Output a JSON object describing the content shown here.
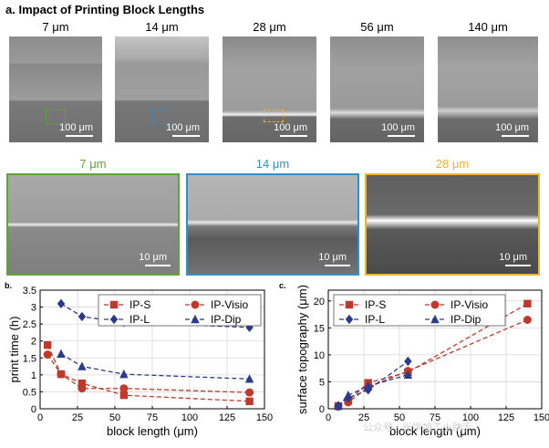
{
  "panel_a": {
    "title": "a. Impact of Printing Block Lengths",
    "top_labels": [
      "7 μm",
      "14 μm",
      "28 μm",
      "56 μm",
      "140 μm"
    ],
    "top_scale": "100 μm",
    "zoom_labels": [
      "7 μm",
      "14 μm",
      "28 μm"
    ],
    "zoom_scale": "10 μm",
    "colors": {
      "green": "#5aa832",
      "blue": "#2f8fd0",
      "orange": "#f0b030"
    }
  },
  "panel_b": {
    "letter": "b."
  },
  "panel_c": {
    "letter": "c."
  },
  "watermark": "公众号 · 光学加工小助手",
  "chart_data": [
    {
      "type": "line",
      "xlabel": "block length (μm)",
      "ylabel": "print time (h)",
      "xlim": [
        0,
        150
      ],
      "ylim": [
        0,
        3.5
      ],
      "xticks": [
        0,
        25,
        50,
        75,
        100,
        125,
        150
      ],
      "yticks": [
        0,
        0.5,
        1,
        1.5,
        2,
        2.5,
        3,
        3.5
      ],
      "grid": true,
      "legend": "top",
      "series": [
        {
          "name": "IP-S",
          "color": "#c0392b",
          "marker": "square",
          "x": [
            5,
            14,
            28,
            56,
            140
          ],
          "y": [
            1.88,
            1.02,
            0.75,
            0.4,
            0.22
          ]
        },
        {
          "name": "IP-Visio",
          "color": "#c0392b",
          "marker": "circle",
          "x": [
            5,
            14,
            28,
            56,
            140
          ],
          "y": [
            1.6,
            1.02,
            0.6,
            0.6,
            0.48
          ]
        },
        {
          "name": "IP-L",
          "color": "#2a3a8c",
          "marker": "diamond",
          "x": [
            14,
            28,
            56,
            140
          ],
          "y": [
            3.1,
            2.72,
            2.55,
            2.4
          ]
        },
        {
          "name": "IP-Dip",
          "color": "#2a3a8c",
          "marker": "triangle",
          "x": [
            14,
            28,
            56,
            140
          ],
          "y": [
            1.62,
            1.25,
            1.02,
            0.88
          ]
        }
      ]
    },
    {
      "type": "line",
      "xlabel": "block length (μm)",
      "ylabel": "surface topography (μm)",
      "xlim": [
        0,
        150
      ],
      "ylim": [
        0,
        22
      ],
      "xticks": [
        0,
        25,
        50,
        75,
        100,
        125,
        150
      ],
      "yticks": [
        0,
        5,
        10,
        15,
        20
      ],
      "grid": true,
      "legend": "top",
      "series": [
        {
          "name": "IP-S",
          "color": "#c0392b",
          "marker": "square",
          "x": [
            7,
            14,
            28,
            56,
            140
          ],
          "y": [
            0.5,
            1.5,
            4.8,
            6.8,
            19.5
          ]
        },
        {
          "name": "IP-Visio",
          "color": "#c0392b",
          "marker": "circle",
          "x": [
            7,
            14,
            28,
            56,
            140
          ],
          "y": [
            0.4,
            1.2,
            4.0,
            7.0,
            16.5
          ]
        },
        {
          "name": "IP-L",
          "color": "#2a3a8c",
          "marker": "diamond",
          "x": [
            7,
            14,
            28,
            56
          ],
          "y": [
            0.6,
            2.0,
            3.5,
            8.8
          ]
        },
        {
          "name": "IP-Dip",
          "color": "#2a3a8c",
          "marker": "triangle",
          "x": [
            7,
            14,
            28,
            56
          ],
          "y": [
            0.5,
            2.5,
            4.2,
            6.3
          ]
        }
      ]
    }
  ]
}
